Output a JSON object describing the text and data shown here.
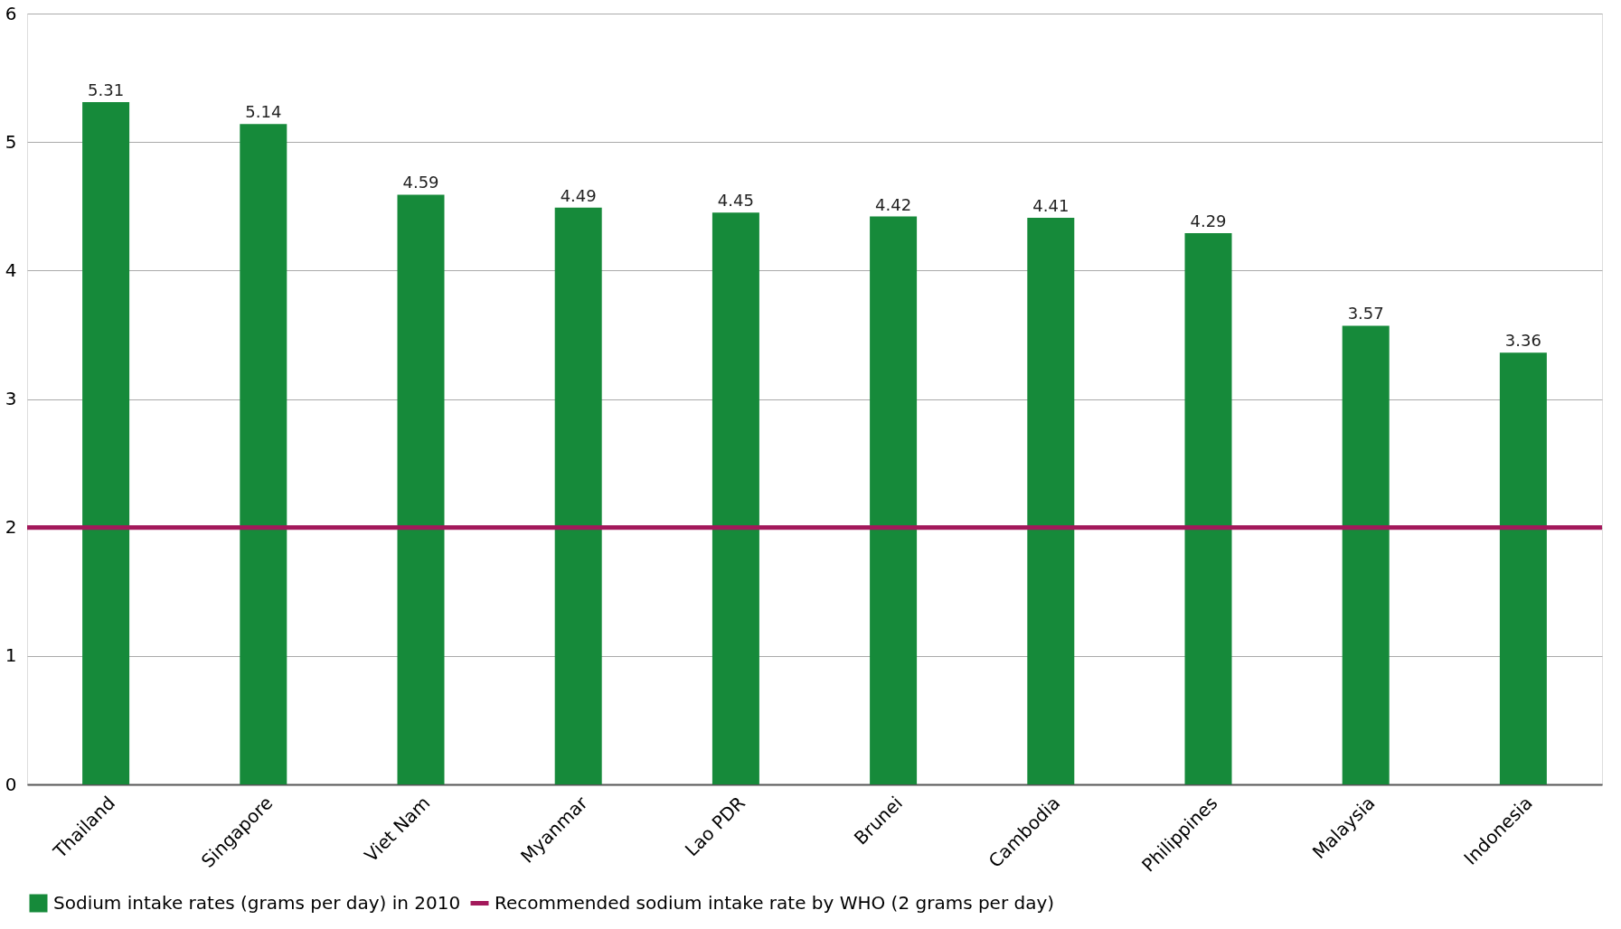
{
  "chart_data": {
    "type": "bar",
    "categories": [
      "Thailand",
      "Singapore",
      "Viet Nam",
      "Myanmar",
      "Lao PDR",
      "Brunei",
      "Cambodia",
      "Philippines",
      "Malaysia",
      "Indonesia"
    ],
    "series": [
      {
        "name": "Sodium intake rates (grams per day) in 2010",
        "color": "#168a3a",
        "values": [
          5.31,
          5.14,
          4.59,
          4.49,
          4.45,
          4.42,
          4.41,
          4.29,
          3.57,
          3.36
        ]
      }
    ],
    "ylim": [
      0,
      6
    ],
    "yticks": [
      0,
      1,
      2,
      3,
      4,
      5,
      6
    ],
    "grid": "y",
    "data_labels": true,
    "legend": "bottom",
    "ref_lines": [
      {
        "axis": "y",
        "value": 2,
        "label": "Recommended sodium intake rate by WHO (2 grams per day)",
        "color": "#a3195b",
        "line_style": "solid"
      }
    ]
  }
}
